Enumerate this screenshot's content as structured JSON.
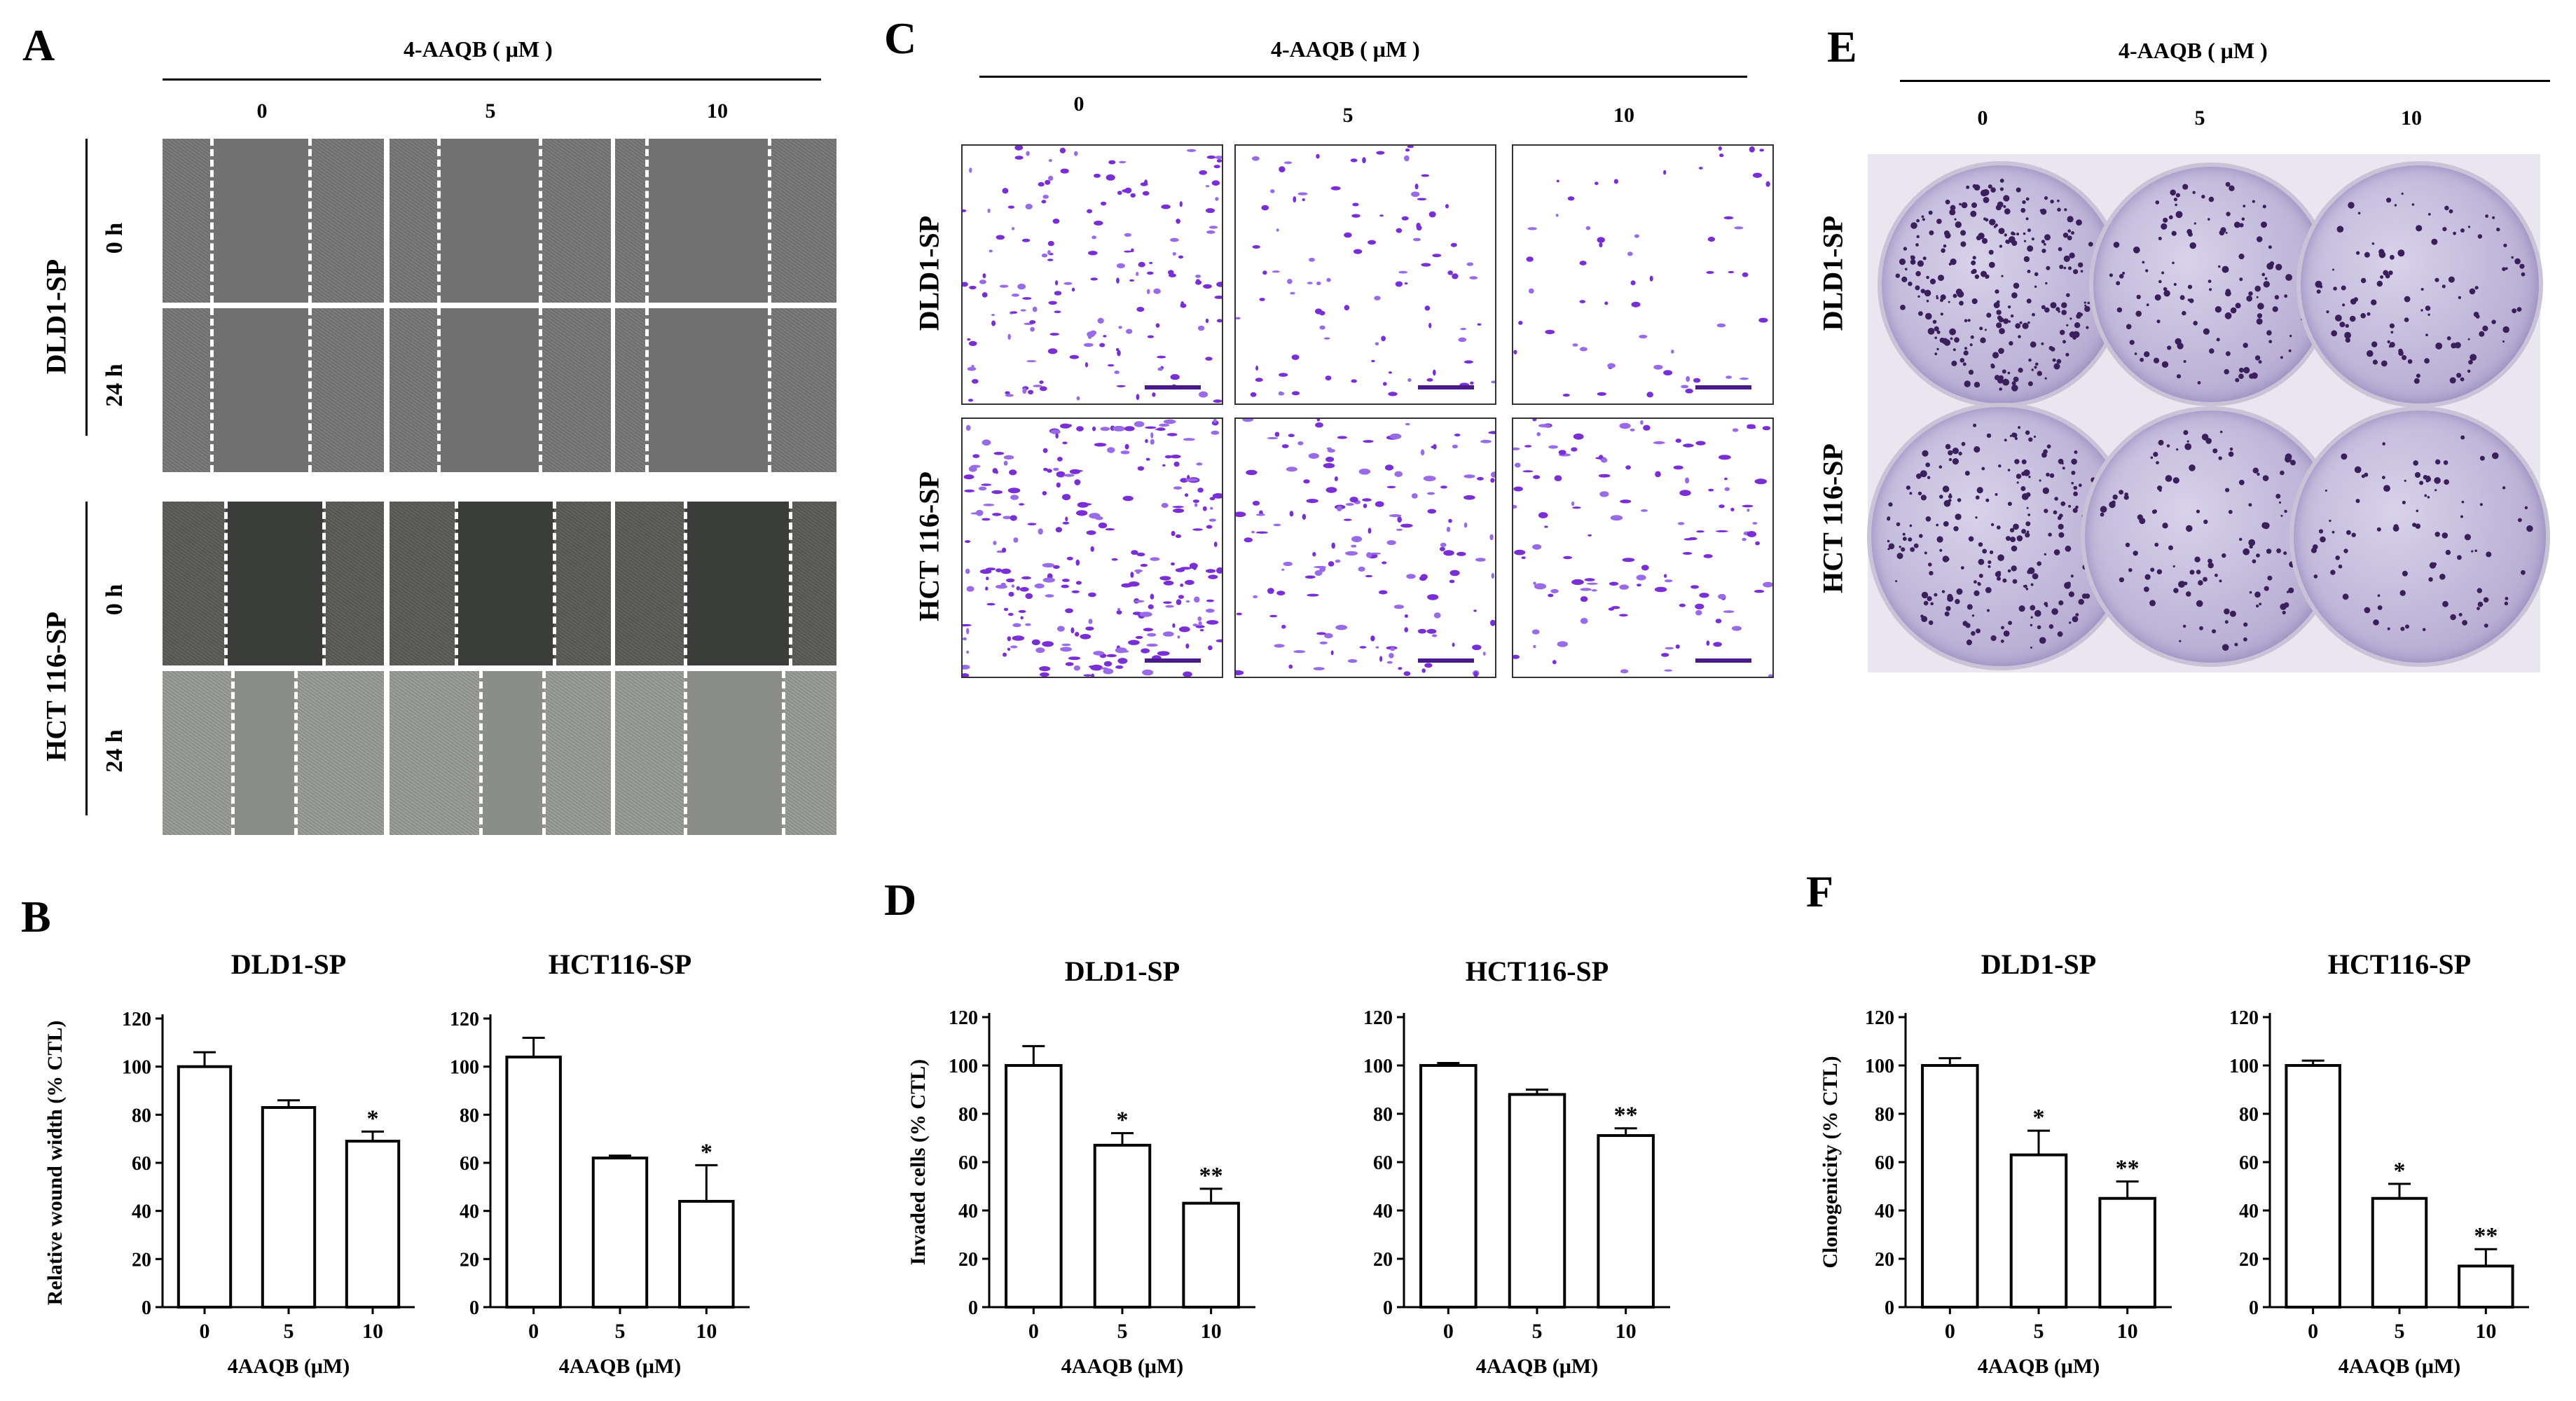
{
  "panels": {
    "A": "A",
    "B": "B",
    "C": "C",
    "D": "D",
    "E": "E",
    "F": "F"
  },
  "treatment_title": "4-AAQB ( μM )",
  "concentrations": [
    "0",
    "5",
    "10"
  ],
  "cell_lines": {
    "dld1": "DLD1-SP",
    "hct116": "HCT 116-SP"
  },
  "timepoints": [
    "0 h",
    "24 h"
  ],
  "colors": {
    "purple_stain": "#7a2fd6",
    "dark_stain": "#3a1f5c",
    "wound_gray": "#7a7a7a"
  },
  "chart_data": [
    {
      "id": "B-DLD1",
      "type": "bar",
      "title": "DLD1-SP",
      "categories": [
        "0",
        "5",
        "10"
      ],
      "values": [
        100,
        83,
        69
      ],
      "errors": [
        6,
        3,
        4
      ],
      "significance": [
        "",
        "",
        "*"
      ],
      "xlabel": "4AAQB (μM)",
      "ylabel": "Relative wound width (% CTL)",
      "ylim": [
        0,
        120
      ],
      "yticks": [
        "0",
        "20",
        "40",
        "60",
        "80",
        "100",
        "120"
      ]
    },
    {
      "id": "B-HCT116",
      "type": "bar",
      "title": "HCT116-SP",
      "categories": [
        "0",
        "5",
        "10"
      ],
      "values": [
        104,
        62,
        44
      ],
      "errors": [
        8,
        1,
        15
      ],
      "significance": [
        "",
        "",
        "*"
      ],
      "xlabel": "4AAQB (μM)",
      "ylabel": "",
      "ylim": [
        0,
        120
      ],
      "yticks": [
        "0",
        "20",
        "40",
        "60",
        "80",
        "100",
        "120"
      ]
    },
    {
      "id": "D-DLD1",
      "type": "bar",
      "title": "DLD1-SP",
      "categories": [
        "0",
        "5",
        "10"
      ],
      "values": [
        100,
        67,
        43
      ],
      "errors": [
        8,
        5,
        6
      ],
      "significance": [
        "",
        "*",
        "**"
      ],
      "xlabel": "4AAQB (μM)",
      "ylabel": "Invaded cells (% CTL)",
      "ylim": [
        0,
        120
      ],
      "yticks": [
        "0",
        "20",
        "40",
        "60",
        "80",
        "100",
        "120"
      ]
    },
    {
      "id": "D-HCT116",
      "type": "bar",
      "title": "HCT116-SP",
      "categories": [
        "0",
        "5",
        "10"
      ],
      "values": [
        100,
        88,
        71
      ],
      "errors": [
        1,
        2,
        3
      ],
      "significance": [
        "",
        "",
        "**"
      ],
      "xlabel": "4AAQB (μM)",
      "ylabel": "",
      "ylim": [
        0,
        120
      ],
      "yticks": [
        "0",
        "20",
        "40",
        "60",
        "80",
        "100",
        "120"
      ]
    },
    {
      "id": "F-DLD1",
      "type": "bar",
      "title": "DLD1-SP",
      "categories": [
        "0",
        "5",
        "10"
      ],
      "values": [
        100,
        63,
        45
      ],
      "errors": [
        3,
        10,
        7
      ],
      "significance": [
        "",
        "*",
        "**"
      ],
      "xlabel": "4AAQB (μM)",
      "ylabel": "Clonogenicity (% CTL)",
      "ylim": [
        0,
        120
      ],
      "yticks": [
        "0",
        "20",
        "40",
        "60",
        "80",
        "100",
        "120"
      ]
    },
    {
      "id": "F-HCT116",
      "type": "bar",
      "title": "HCT116-SP",
      "categories": [
        "0",
        "5",
        "10"
      ],
      "values": [
        100,
        45,
        17
      ],
      "errors": [
        2,
        6,
        7
      ],
      "significance": [
        "",
        "*",
        "**"
      ],
      "xlabel": "4AAQB (μM)",
      "ylabel": "",
      "ylim": [
        0,
        120
      ],
      "yticks": [
        "0",
        "20",
        "40",
        "60",
        "80",
        "100",
        "120"
      ]
    }
  ]
}
